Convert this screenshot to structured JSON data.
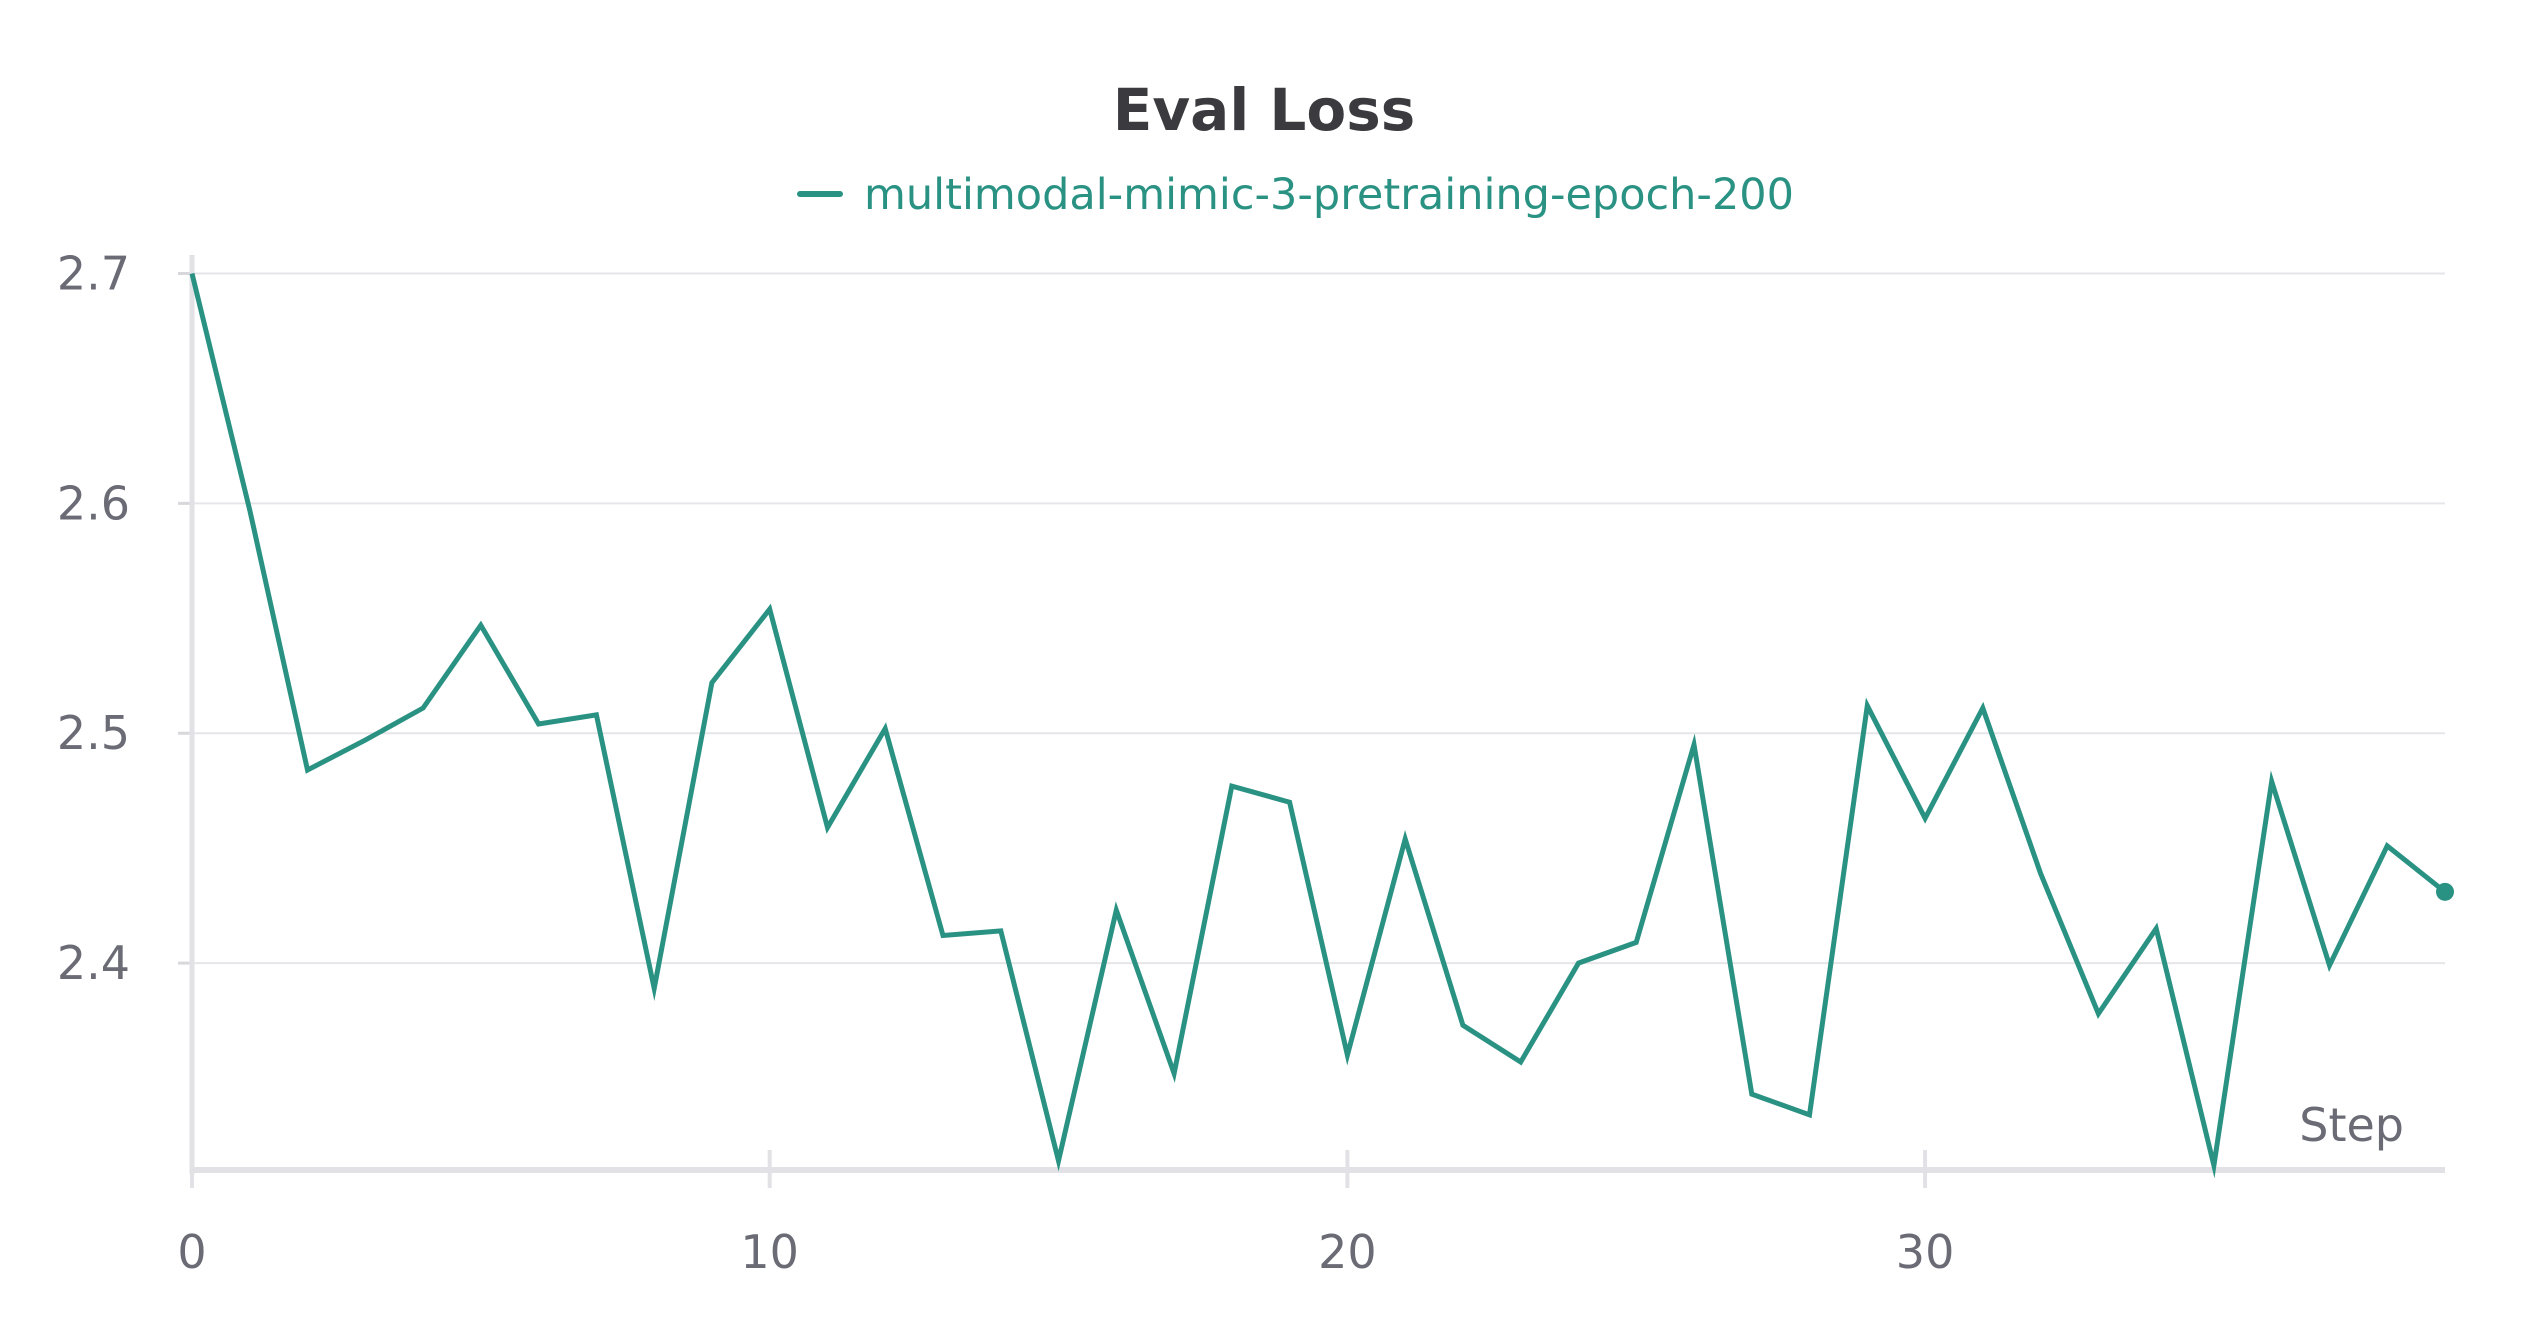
{
  "chart_data": {
    "type": "line",
    "title": "Eval Loss",
    "xlabel": "Step",
    "ylabel": "",
    "xlim": [
      0,
      39
    ],
    "ylim": [
      2.31,
      2.705
    ],
    "xticks": [
      0,
      10,
      20,
      30
    ],
    "yticks": [
      2.4,
      2.5,
      2.6,
      2.7
    ],
    "xtick_labels": [
      "0",
      "10",
      "20",
      "30"
    ],
    "ytick_labels": [
      "2.4",
      "2.5",
      "2.6",
      "2.7"
    ],
    "grid": true,
    "legend_position": "top-center",
    "series": [
      {
        "name": "multimodal-mimic-3-pretraining-epoch-200",
        "color": "#2a9283",
        "x": [
          0,
          1,
          2,
          3,
          4,
          5,
          6,
          7,
          8,
          9,
          10,
          11,
          12,
          13,
          14,
          15,
          16,
          17,
          18,
          19,
          20,
          21,
          22,
          23,
          24,
          25,
          26,
          27,
          28,
          29,
          30,
          31,
          32,
          33,
          34,
          35,
          36,
          37,
          38,
          39
        ],
        "y": [
          2.7,
          2.597,
          2.484,
          2.497,
          2.511,
          2.547,
          2.504,
          2.508,
          2.389,
          2.522,
          2.554,
          2.459,
          2.502,
          2.412,
          2.414,
          2.314,
          2.423,
          2.352,
          2.477,
          2.47,
          2.36,
          2.454,
          2.373,
          2.357,
          2.4,
          2.409,
          2.495,
          2.343,
          2.334,
          2.512,
          2.463,
          2.511,
          2.439,
          2.378,
          2.415,
          2.312,
          2.479,
          2.399,
          2.451,
          2.431
        ]
      }
    ]
  }
}
